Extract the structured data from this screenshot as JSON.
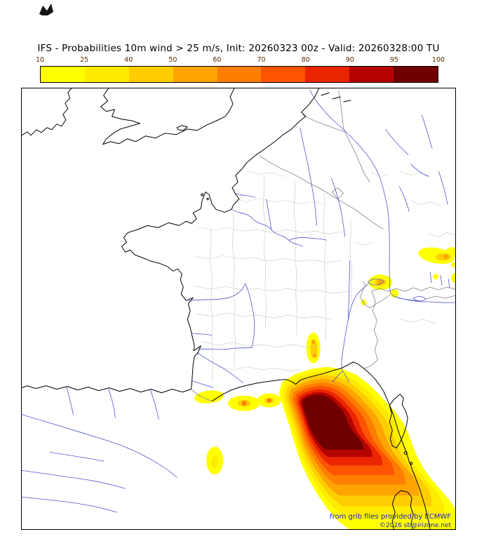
{
  "header": {
    "title": "IFS - Probabilities 10m wind > 25 m/s, Init: 20260323 00z - Valid: 20260328:00 TU"
  },
  "colorbar": {
    "tick_labels": [
      "10",
      "25",
      "40",
      "50",
      "60",
      "70",
      "80",
      "90",
      "95",
      "100"
    ],
    "segment_colors": [
      "#ffff00",
      "#ffeb00",
      "#ffcd00",
      "#ffa400",
      "#ff7e00",
      "#fc5400",
      "#eb2500",
      "#b50400",
      "#700000"
    ],
    "tick_color": "#5a2d00",
    "border_color": "#000000"
  },
  "map": {
    "background_color": "#ffffff",
    "coast_color": "#000000",
    "river_color": "#5056d0",
    "country_border_color": "#8f8f8f",
    "admin_border_color": "#c9c9c9",
    "probability_maxima": [
      {
        "location": "Ligurian Sea / Gulf of Genoa extending toward Corsica and Sardinia",
        "max_percent": "95-100"
      },
      {
        "location": "Languedoc coastal strip",
        "max_percent": "60-70"
      },
      {
        "location": "Rhone valley",
        "max_percent": "50-60"
      },
      {
        "location": "Alps near Lake Geneva",
        "max_percent": "50-60"
      },
      {
        "location": "Northeast corner (southern Germany)",
        "max_percent": "50-60"
      },
      {
        "location": "Spot south of Pyrenees",
        "max_percent": "10-40"
      }
    ],
    "attribution": {
      "line1": "from grib files provided by ECMWF",
      "line2": "©2026 sb@irizone.net",
      "color": "#2121cc"
    }
  }
}
